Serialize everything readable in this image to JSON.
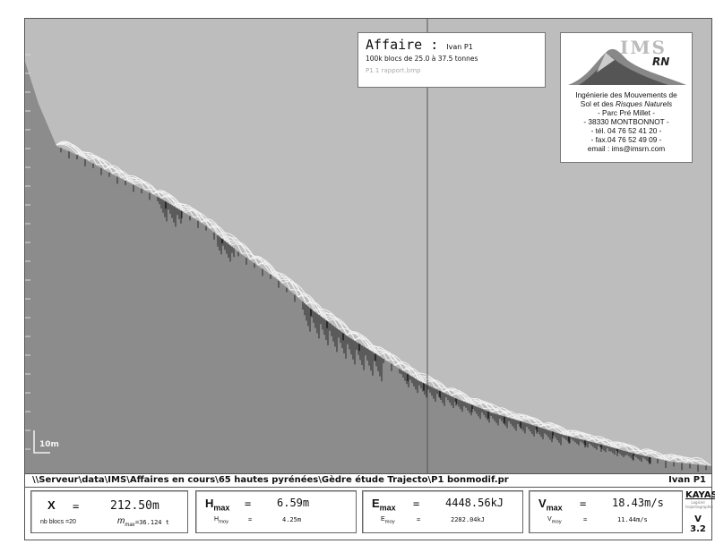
{
  "affaire": {
    "title": "Affaire :",
    "name": "Ivan P1",
    "line1": "100k blocs de 25.0 à 37.5 tonnes",
    "line2": "P1.1 rapport.bmp"
  },
  "logo": {
    "brand": "IMS",
    "brand_suffix": "RN",
    "line1": "Ingénierie des Mouvements de",
    "line2a": "Sol et des ",
    "line2b": "Risques Naturels",
    "line3": "- Parc Pré Millet -",
    "line4": "- 38330 MONTBONNOT -",
    "line5": "- tél. 04 76 52 41 20 -",
    "line6": "- fax.04 76 52 49 09 -",
    "line7": "email : ims@imsrn.com"
  },
  "scale_label": "10m",
  "path_bar": {
    "path": "\\\\Serveur\\data\\IMS\\Affaires en cours\\65 hautes pyrénées\\Gèdre étude Trajecto\\P1 bonmodif.pr",
    "user": "Ivan P1"
  },
  "stats": {
    "x_label": "X",
    "x_eq": "=",
    "x_value": "212.50m",
    "nb_blocs": "nb blocs =20",
    "m_max_label": "m",
    "m_max_sub": "max",
    "m_max_value": "=36.124 t",
    "h_label": "H",
    "h_sub": "max",
    "h_eq": "=",
    "h_value": "6.59m",
    "h_moy_label": "H",
    "h_moy_sub": "moy",
    "h_moy_eq": "=",
    "h_moy_value": "4.25m",
    "e_label": "E",
    "e_sub": "max",
    "e_eq": "=",
    "e_value": "4448.56kJ",
    "e_moy_label": "E",
    "e_moy_sub": "moy",
    "e_moy_eq": "=",
    "e_moy_value": "2282.04kJ",
    "v_label": "V",
    "v_sub": "max",
    "v_eq": "=",
    "v_value": "18.43m/s",
    "v_moy_label": "V",
    "v_moy_sub": "moy",
    "v_moy_eq": "=",
    "v_moy_value": "11.44m/s"
  },
  "kayass": {
    "name": "KAYASS",
    "tiny": "Logiciel trajectographie",
    "version": "V 3.2"
  },
  "colors": {
    "sky": "#bdbdbd",
    "ground": "#8c8c8c",
    "trajectories": "#f2f2f2",
    "impact_marks": "#2a2a2a",
    "cursor": "#555555"
  }
}
